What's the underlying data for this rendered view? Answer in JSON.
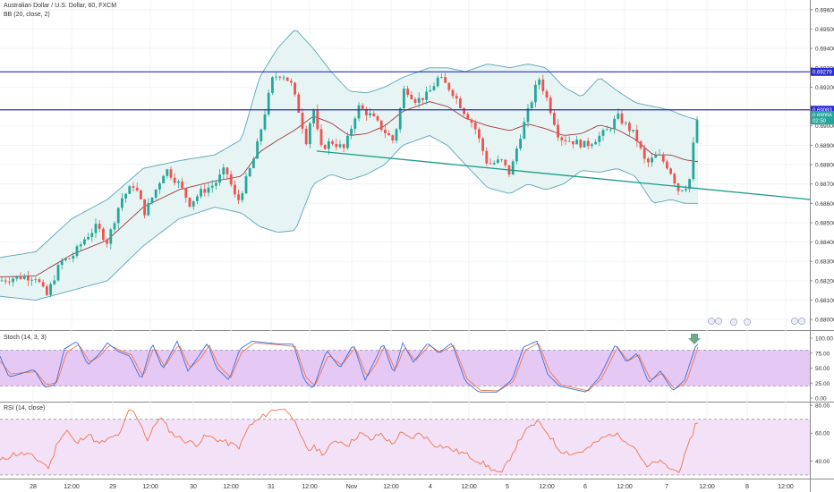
{
  "header": {
    "symbol_title": "Australian Dollar / U.S. Dollar, 60, FXCM",
    "bb_label": "BB (20, close, 2)",
    "stoch_label": "Stoch (14, 3, 3)",
    "rsi_label": "RSI (14, close)"
  },
  "colors": {
    "up": "#26a69a",
    "down": "#ef5350",
    "bb_basis": "#a0393f",
    "bb_band": "#5aa6b8",
    "bb_fill": "#e6f5f3",
    "hline": "#2a2ecf",
    "trendline": "#1a9a8a",
    "stoch_k": "#3b6fd8",
    "stoch_d": "#f0764a",
    "stoch_fill": "#e6c8f5",
    "rsi_line": "#f0764a",
    "rsi_fill": "#f3e1f8",
    "arrow": "#6fa88c"
  },
  "chart_data": [
    {
      "type": "candlestick",
      "title": "Australian Dollar / U.S. Dollar, 60, FXCM",
      "ylim": [
        0.6795,
        0.6965
      ],
      "y_ticks": [
        "0.69600",
        "0.69500",
        "0.69400",
        "0.69300",
        "0.69200",
        "0.69000",
        "0.68900",
        "0.68800",
        "0.68700",
        "0.68600",
        "0.68500",
        "0.68400",
        "0.68300",
        "0.68200",
        "0.68100",
        "0.68000"
      ],
      "x_ticks": [
        "28",
        "12:00",
        "29",
        "12:00",
        "30",
        "12:00",
        "31",
        "12:00",
        "Nov",
        "12:00",
        "4",
        "12:00",
        "5",
        "12:00",
        "6",
        "12:00",
        "7",
        "12:00",
        "8",
        "12:00"
      ],
      "price_labels": [
        {
          "text": "0.69279",
          "value": 0.69279
        },
        {
          "text": "0.69083",
          "value": 0.69083
        },
        {
          "text": "0.69056",
          "value": 0.69056
        },
        {
          "text": "02:50",
          "value": 0.69028
        }
      ],
      "horizontal_lines": [
        0.69279,
        0.69083
      ],
      "trendline": {
        "start": {
          "x": 354,
          "y": 0.6887
        },
        "end": {
          "x": 905,
          "y": 0.6862
        }
      },
      "close_anchors": [
        [
          0,
          0.682
        ],
        [
          20,
          0.6822
        ],
        [
          40,
          0.6822
        ],
        [
          52,
          0.6812
        ],
        [
          68,
          0.683
        ],
        [
          80,
          0.6832
        ],
        [
          95,
          0.6842
        ],
        [
          108,
          0.6848
        ],
        [
          120,
          0.684
        ],
        [
          135,
          0.6862
        ],
        [
          150,
          0.687
        ],
        [
          162,
          0.6855
        ],
        [
          175,
          0.6868
        ],
        [
          185,
          0.6878
        ],
        [
          200,
          0.687
        ],
        [
          212,
          0.686
        ],
        [
          225,
          0.6866
        ],
        [
          240,
          0.687
        ],
        [
          252,
          0.6878
        ],
        [
          265,
          0.686
        ],
        [
          275,
          0.6872
        ],
        [
          285,
          0.6885
        ],
        [
          295,
          0.6905
        ],
        [
          305,
          0.6925
        ],
        [
          315,
          0.6927
        ],
        [
          325,
          0.6922
        ],
        [
          335,
          0.6906
        ],
        [
          342,
          0.6892
        ],
        [
          350,
          0.691
        ],
        [
          358,
          0.6888
        ],
        [
          370,
          0.6892
        ],
        [
          385,
          0.6888
        ],
        [
          400,
          0.691
        ],
        [
          415,
          0.6905
        ],
        [
          428,
          0.6898
        ],
        [
          440,
          0.6892
        ],
        [
          452,
          0.692
        ],
        [
          465,
          0.6913
        ],
        [
          478,
          0.6916
        ],
        [
          490,
          0.6925
        ],
        [
          505,
          0.6918
        ],
        [
          518,
          0.6908
        ],
        [
          530,
          0.69
        ],
        [
          545,
          0.688
        ],
        [
          560,
          0.6882
        ],
        [
          570,
          0.6875
        ],
        [
          580,
          0.6893
        ],
        [
          592,
          0.691
        ],
        [
          602,
          0.6925
        ],
        [
          612,
          0.6913
        ],
        [
          625,
          0.6894
        ],
        [
          640,
          0.6892
        ],
        [
          655,
          0.689
        ],
        [
          668,
          0.6894
        ],
        [
          680,
          0.6898
        ],
        [
          690,
          0.6905
        ],
        [
          700,
          0.69
        ],
        [
          710,
          0.6895
        ],
        [
          722,
          0.688
        ],
        [
          735,
          0.6885
        ],
        [
          748,
          0.6878
        ],
        [
          758,
          0.6867
        ],
        [
          770,
          0.687
        ],
        [
          776,
          0.6895
        ],
        [
          780,
          0.69056
        ]
      ],
      "bb_anchors": [
        [
          0,
          0.6832,
          0.6812
        ],
        [
          40,
          0.6835,
          0.681
        ],
        [
          80,
          0.6852,
          0.6815
        ],
        [
          120,
          0.6862,
          0.682
        ],
        [
          160,
          0.6878,
          0.6838
        ],
        [
          200,
          0.6882,
          0.6852
        ],
        [
          240,
          0.6885,
          0.6858
        ],
        [
          270,
          0.6893,
          0.6855
        ],
        [
          290,
          0.6925,
          0.6848
        ],
        [
          310,
          0.694,
          0.6845
        ],
        [
          330,
          0.695,
          0.6846
        ],
        [
          350,
          0.694,
          0.687
        ],
        [
          370,
          0.6928,
          0.6875
        ],
        [
          390,
          0.6918,
          0.6872
        ],
        [
          410,
          0.6917,
          0.6875
        ],
        [
          430,
          0.692,
          0.688
        ],
        [
          450,
          0.6925,
          0.689
        ],
        [
          480,
          0.693,
          0.6895
        ],
        [
          500,
          0.693,
          0.689
        ],
        [
          520,
          0.6928,
          0.688
        ],
        [
          545,
          0.6932,
          0.6868
        ],
        [
          570,
          0.693,
          0.6865
        ],
        [
          590,
          0.6932,
          0.687
        ],
        [
          610,
          0.693,
          0.6867
        ],
        [
          630,
          0.692,
          0.687
        ],
        [
          650,
          0.6915,
          0.6877
        ],
        [
          670,
          0.6925,
          0.6876
        ],
        [
          690,
          0.6918,
          0.6878
        ],
        [
          710,
          0.6912,
          0.6874
        ],
        [
          730,
          0.691,
          0.686
        ],
        [
          750,
          0.6908,
          0.6862
        ],
        [
          765,
          0.6905,
          0.686
        ],
        [
          780,
          0.6903,
          0.686
        ]
      ]
    },
    {
      "type": "line",
      "title": "Stoch (14, 3, 3)",
      "ylim": [
        0,
        100
      ],
      "y_ticks": [
        "100.00",
        "75.00",
        "50.00",
        "25.00",
        "0.00"
      ],
      "band": [
        20,
        80
      ],
      "k_anchors": [
        [
          0,
          70
        ],
        [
          10,
          35
        ],
        [
          22,
          40
        ],
        [
          38,
          48
        ],
        [
          50,
          18
        ],
        [
          62,
          22
        ],
        [
          72,
          82
        ],
        [
          86,
          95
        ],
        [
          98,
          55
        ],
        [
          110,
          72
        ],
        [
          120,
          92
        ],
        [
          132,
          78
        ],
        [
          145,
          70
        ],
        [
          158,
          30
        ],
        [
          170,
          92
        ],
        [
          182,
          48
        ],
        [
          198,
          95
        ],
        [
          210,
          45
        ],
        [
          222,
          70
        ],
        [
          232,
          92
        ],
        [
          242,
          50
        ],
        [
          256,
          30
        ],
        [
          268,
          82
        ],
        [
          282,
          95
        ],
        [
          300,
          92
        ],
        [
          315,
          90
        ],
        [
          328,
          90
        ],
        [
          340,
          30
        ],
        [
          350,
          15
        ],
        [
          365,
          80
        ],
        [
          380,
          50
        ],
        [
          395,
          90
        ],
        [
          408,
          30
        ],
        [
          418,
          60
        ],
        [
          428,
          92
        ],
        [
          440,
          40
        ],
        [
          450,
          92
        ],
        [
          462,
          60
        ],
        [
          478,
          92
        ],
        [
          490,
          75
        ],
        [
          505,
          92
        ],
        [
          520,
          28
        ],
        [
          535,
          10
        ],
        [
          555,
          10
        ],
        [
          572,
          30
        ],
        [
          585,
          85
        ],
        [
          600,
          95
        ],
        [
          612,
          40
        ],
        [
          625,
          20
        ],
        [
          640,
          15
        ],
        [
          655,
          10
        ],
        [
          670,
          35
        ],
        [
          688,
          90
        ],
        [
          700,
          60
        ],
        [
          712,
          75
        ],
        [
          725,
          25
        ],
        [
          738,
          45
        ],
        [
          752,
          12
        ],
        [
          765,
          30
        ],
        [
          778,
          90
        ]
      ],
      "d_anchors": [
        [
          0,
          62
        ],
        [
          12,
          40
        ],
        [
          24,
          42
        ],
        [
          40,
          44
        ],
        [
          52,
          22
        ],
        [
          64,
          26
        ],
        [
          74,
          75
        ],
        [
          88,
          90
        ],
        [
          100,
          60
        ],
        [
          112,
          70
        ],
        [
          122,
          88
        ],
        [
          134,
          80
        ],
        [
          147,
          72
        ],
        [
          160,
          35
        ],
        [
          172,
          85
        ],
        [
          184,
          52
        ],
        [
          200,
          90
        ],
        [
          212,
          50
        ],
        [
          224,
          66
        ],
        [
          234,
          88
        ],
        [
          244,
          55
        ],
        [
          258,
          34
        ],
        [
          270,
          76
        ],
        [
          284,
          92
        ],
        [
          302,
          90
        ],
        [
          317,
          88
        ],
        [
          330,
          86
        ],
        [
          342,
          35
        ],
        [
          352,
          20
        ],
        [
          367,
          72
        ],
        [
          382,
          55
        ],
        [
          397,
          85
        ],
        [
          410,
          35
        ],
        [
          420,
          56
        ],
        [
          430,
          88
        ],
        [
          442,
          45
        ],
        [
          452,
          86
        ],
        [
          464,
          62
        ],
        [
          480,
          88
        ],
        [
          492,
          76
        ],
        [
          507,
          88
        ],
        [
          522,
          32
        ],
        [
          537,
          13
        ],
        [
          557,
          12
        ],
        [
          574,
          28
        ],
        [
          587,
          80
        ],
        [
          602,
          92
        ],
        [
          614,
          45
        ],
        [
          627,
          22
        ],
        [
          642,
          17
        ],
        [
          657,
          12
        ],
        [
          672,
          32
        ],
        [
          690,
          85
        ],
        [
          702,
          62
        ],
        [
          714,
          72
        ],
        [
          727,
          30
        ],
        [
          740,
          42
        ],
        [
          754,
          15
        ],
        [
          767,
          26
        ],
        [
          780,
          85
        ]
      ]
    },
    {
      "type": "line",
      "title": "RSI (14, close)",
      "ylim": [
        28,
        82
      ],
      "y_ticks": [
        "80.00",
        "60.00",
        "40.00"
      ],
      "band": [
        30,
        70
      ],
      "anchors": [
        [
          0,
          40
        ],
        [
          15,
          45
        ],
        [
          30,
          45
        ],
        [
          45,
          40
        ],
        [
          55,
          35
        ],
        [
          65,
          55
        ],
        [
          75,
          62
        ],
        [
          85,
          52
        ],
        [
          98,
          60
        ],
        [
          110,
          52
        ],
        [
          120,
          55
        ],
        [
          135,
          60
        ],
        [
          145,
          78
        ],
        [
          155,
          70
        ],
        [
          165,
          55
        ],
        [
          178,
          72
        ],
        [
          192,
          60
        ],
        [
          205,
          55
        ],
        [
          220,
          52
        ],
        [
          230,
          58
        ],
        [
          245,
          55
        ],
        [
          258,
          52
        ],
        [
          268,
          50
        ],
        [
          278,
          65
        ],
        [
          290,
          70
        ],
        [
          300,
          75
        ],
        [
          312,
          78
        ],
        [
          325,
          75
        ],
        [
          335,
          58
        ],
        [
          345,
          48
        ],
        [
          352,
          50
        ],
        [
          362,
          45
        ],
        [
          375,
          55
        ],
        [
          390,
          52
        ],
        [
          402,
          60
        ],
        [
          415,
          55
        ],
        [
          425,
          60
        ],
        [
          438,
          52
        ],
        [
          448,
          60
        ],
        [
          458,
          56
        ],
        [
          470,
          60
        ],
        [
          485,
          52
        ],
        [
          498,
          50
        ],
        [
          510,
          47
        ],
        [
          520,
          45
        ],
        [
          535,
          40
        ],
        [
          548,
          35
        ],
        [
          560,
          30
        ],
        [
          572,
          45
        ],
        [
          585,
          60
        ],
        [
          600,
          68
        ],
        [
          610,
          62
        ],
        [
          625,
          48
        ],
        [
          640,
          45
        ],
        [
          655,
          48
        ],
        [
          670,
          55
        ],
        [
          685,
          60
        ],
        [
          700,
          55
        ],
        [
          712,
          48
        ],
        [
          722,
          35
        ],
        [
          735,
          40
        ],
        [
          748,
          35
        ],
        [
          758,
          32
        ],
        [
          768,
          48
        ],
        [
          778,
          68
        ]
      ]
    }
  ]
}
